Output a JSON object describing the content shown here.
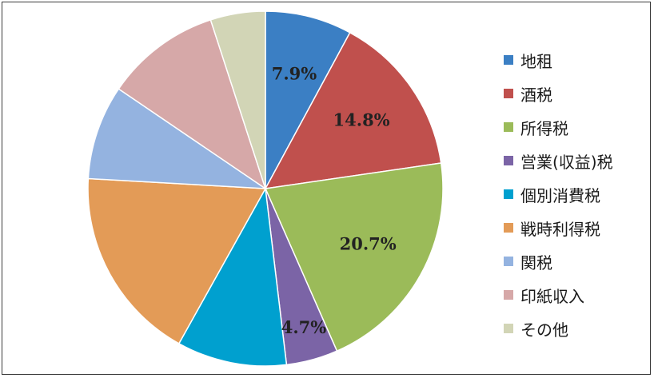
{
  "chart_data": {
    "type": "pie",
    "title": "",
    "start_angle_deg": 0,
    "direction": "clockwise",
    "slices": [
      {
        "name": "地租",
        "value": 7.9,
        "label": "7.9%",
        "color": "#3b7fc4"
      },
      {
        "name": "酒税",
        "value": 14.8,
        "label": "14.8%",
        "color": "#c0504d"
      },
      {
        "name": "所得税",
        "value": 20.7,
        "label": "20.7%",
        "color": "#9bbb59"
      },
      {
        "name": "営業(収益)税",
        "value": 4.7,
        "label": "4.7%",
        "color": "#7b64a6"
      },
      {
        "name": "個別消費税",
        "value": 10.0,
        "label": "",
        "color": "#00a0cf"
      },
      {
        "name": "戦時利得税",
        "value": 17.8,
        "label": "",
        "color": "#e39b57"
      },
      {
        "name": "関税",
        "value": 8.6,
        "label": "",
        "color": "#94b3e0"
      },
      {
        "name": "印紙収入",
        "value": 10.5,
        "label": "",
        "color": "#d6a8a8"
      },
      {
        "name": "その他",
        "value": 5.0,
        "label": "",
        "color": "#d2d5b6"
      }
    ],
    "legend_position": "right"
  },
  "legend": {
    "items": [
      {
        "label": "地租",
        "color": "#3b7fc4"
      },
      {
        "label": "酒税",
        "color": "#c0504d"
      },
      {
        "label": "所得税",
        "color": "#9bbb59"
      },
      {
        "label": "営業(収益)税",
        "color": "#7b64a6"
      },
      {
        "label": "個別消費税",
        "color": "#00a0cf"
      },
      {
        "label": "戦時利得税",
        "color": "#e39b57"
      },
      {
        "label": "関税",
        "color": "#94b3e0"
      },
      {
        "label": "印紙収入",
        "color": "#d6a8a8"
      },
      {
        "label": "その他",
        "color": "#d2d5b6"
      }
    ]
  }
}
